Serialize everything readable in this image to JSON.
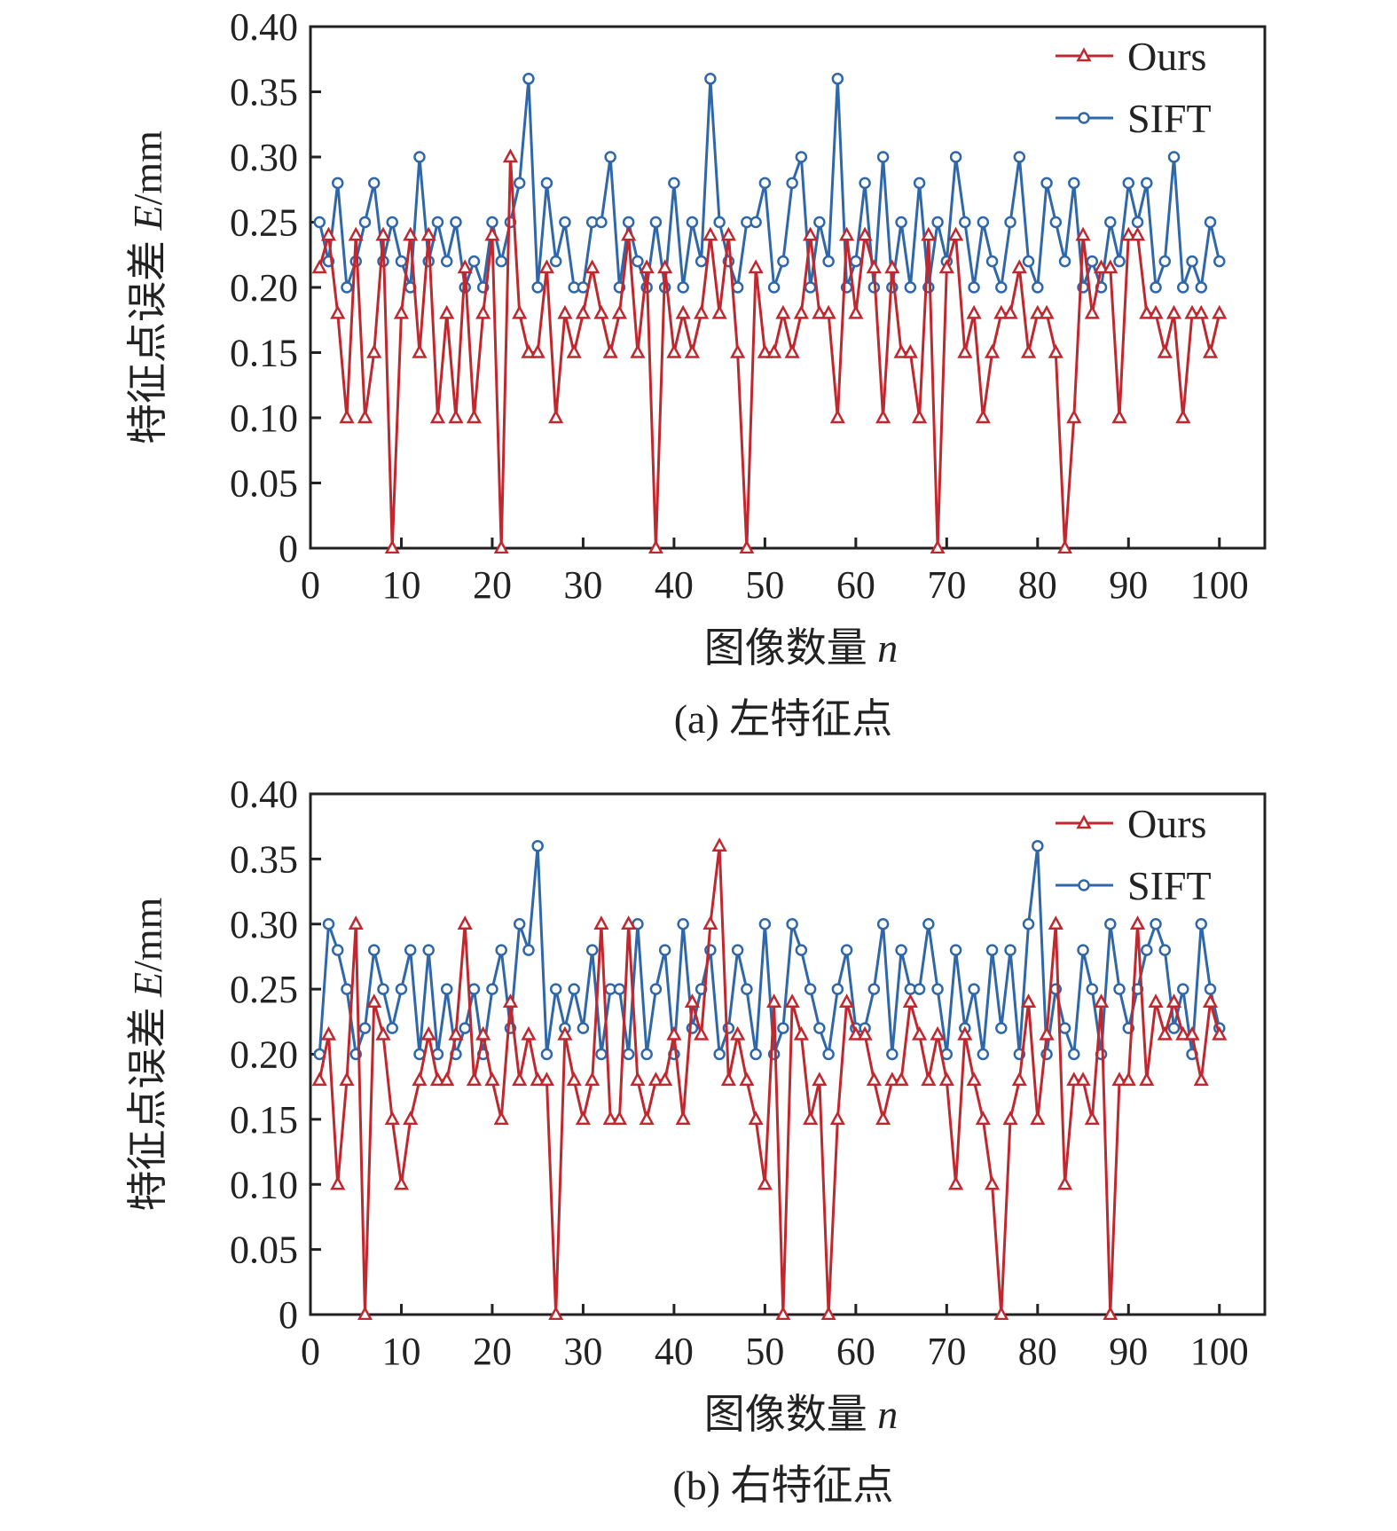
{
  "colors": {
    "ours": "#c0282f",
    "sift": "#2f67a8",
    "axis": "#222222"
  },
  "chart_data": [
    {
      "type": "line",
      "caption": "(a) 左特征点",
      "xlabel": "图像数量",
      "xlabel_var": "n",
      "ylabel": "特征点误差",
      "ylabel_var": "E",
      "ylabel_unit": "/mm",
      "xlim": [
        0,
        105
      ],
      "ylim": [
        0,
        0.4
      ],
      "xticks": [
        "0",
        "10",
        "20",
        "30",
        "40",
        "50",
        "60",
        "70",
        "80",
        "90",
        "100"
      ],
      "yticks": [
        "0",
        "0.05",
        "0.10",
        "0.15",
        "0.20",
        "0.25",
        "0.30",
        "0.35",
        "0.40"
      ],
      "legend_position": "top-right",
      "series": [
        {
          "name": "Ours",
          "marker": "triangle",
          "values": [
            0.215,
            0.24,
            0.18,
            0.1,
            0.24,
            0.1,
            0.15,
            0.24,
            0,
            0.18,
            0.24,
            0.15,
            0.24,
            0.1,
            0.18,
            0.1,
            0.215,
            0.1,
            0.18,
            0.24,
            0,
            0.3,
            0.18,
            0.15,
            0.15,
            0.215,
            0.1,
            0.18,
            0.15,
            0.18,
            0.215,
            0.18,
            0.15,
            0.18,
            0.24,
            0.15,
            0.215,
            0,
            0.215,
            0.15,
            0.18,
            0.15,
            0.18,
            0.24,
            0.18,
            0.24,
            0.15,
            0,
            0.215,
            0.15,
            0.15,
            0.18,
            0.15,
            0.18,
            0.24,
            0.18,
            0.18,
            0.1,
            0.24,
            0.18,
            0.24,
            0.215,
            0.1,
            0.215,
            0.15,
            0.15,
            0.1,
            0.24,
            0,
            0.215,
            0.24,
            0.15,
            0.18,
            0.1,
            0.15,
            0.18,
            0.18,
            0.215,
            0.15,
            0.18,
            0.18,
            0.15,
            0,
            0.1,
            0.24,
            0.18,
            0.215,
            0.215,
            0.1,
            0.24,
            0.24,
            0.18,
            0.18,
            0.15,
            0.18,
            0.1,
            0.18,
            0.18,
            0.15,
            0.18
          ]
        },
        {
          "name": "SIFT",
          "marker": "circle",
          "values": [
            0.25,
            0.22,
            0.28,
            0.2,
            0.22,
            0.25,
            0.28,
            0.22,
            0.25,
            0.22,
            0.2,
            0.3,
            0.22,
            0.25,
            0.22,
            0.25,
            0.2,
            0.22,
            0.2,
            0.25,
            0.22,
            0.25,
            0.28,
            0.36,
            0.2,
            0.28,
            0.22,
            0.25,
            0.2,
            0.2,
            0.25,
            0.25,
            0.3,
            0.2,
            0.25,
            0.22,
            0.2,
            0.25,
            0.2,
            0.28,
            0.2,
            0.25,
            0.22,
            0.36,
            0.25,
            0.22,
            0.2,
            0.25,
            0.25,
            0.28,
            0.2,
            0.22,
            0.28,
            0.3,
            0.2,
            0.25,
            0.22,
            0.36,
            0.2,
            0.22,
            0.28,
            0.2,
            0.3,
            0.2,
            0.25,
            0.2,
            0.28,
            0.2,
            0.25,
            0.22,
            0.3,
            0.25,
            0.2,
            0.25,
            0.22,
            0.2,
            0.25,
            0.3,
            0.22,
            0.2,
            0.28,
            0.25,
            0.22,
            0.28,
            0.2,
            0.22,
            0.2,
            0.25,
            0.22,
            0.28,
            0.25,
            0.28,
            0.2,
            0.22,
            0.3,
            0.2,
            0.22,
            0.2,
            0.25,
            0.22
          ]
        }
      ]
    },
    {
      "type": "line",
      "caption": "(b) 右特征点",
      "xlabel": "图像数量",
      "xlabel_var": "n",
      "ylabel": "特征点误差",
      "ylabel_var": "E",
      "ylabel_unit": "/mm",
      "xlim": [
        0,
        105
      ],
      "ylim": [
        0,
        0.4
      ],
      "xticks": [
        "0",
        "10",
        "20",
        "30",
        "40",
        "50",
        "60",
        "70",
        "80",
        "90",
        "100"
      ],
      "yticks": [
        "0",
        "0.05",
        "0.10",
        "0.15",
        "0.20",
        "0.25",
        "0.30",
        "0.35",
        "0.40"
      ],
      "legend_position": "top-right",
      "series": [
        {
          "name": "Ours",
          "marker": "triangle",
          "values": [
            0.18,
            0.215,
            0.1,
            0.18,
            0.3,
            0,
            0.24,
            0.215,
            0.15,
            0.1,
            0.15,
            0.18,
            0.215,
            0.18,
            0.18,
            0.215,
            0.3,
            0.18,
            0.215,
            0.18,
            0.15,
            0.24,
            0.18,
            0.215,
            0.18,
            0.18,
            0,
            0.215,
            0.18,
            0.15,
            0.18,
            0.3,
            0.15,
            0.15,
            0.3,
            0.18,
            0.15,
            0.18,
            0.18,
            0.215,
            0.15,
            0.24,
            0.215,
            0.3,
            0.36,
            0.18,
            0.215,
            0.18,
            0.15,
            0.1,
            0.24,
            0,
            0.24,
            0.215,
            0.15,
            0.18,
            0,
            0.15,
            0.24,
            0.215,
            0.215,
            0.18,
            0.15,
            0.18,
            0.18,
            0.24,
            0.215,
            0.18,
            0.215,
            0.18,
            0.1,
            0.215,
            0.18,
            0.15,
            0.1,
            0,
            0.15,
            0.18,
            0.24,
            0.15,
            0.215,
            0.3,
            0.1,
            0.18,
            0.18,
            0.15,
            0.24,
            0,
            0.18,
            0.18,
            0.3,
            0.18,
            0.24,
            0.215,
            0.24,
            0.215,
            0.215,
            0.18,
            0.24,
            0.215
          ]
        },
        {
          "name": "SIFT",
          "marker": "circle",
          "values": [
            0.2,
            0.3,
            0.28,
            0.25,
            0.2,
            0.22,
            0.28,
            0.25,
            0.22,
            0.25,
            0.28,
            0.2,
            0.28,
            0.2,
            0.25,
            0.2,
            0.22,
            0.25,
            0.2,
            0.25,
            0.28,
            0.22,
            0.3,
            0.28,
            0.36,
            0.2,
            0.25,
            0.22,
            0.25,
            0.22,
            0.28,
            0.2,
            0.25,
            0.25,
            0.2,
            0.3,
            0.2,
            0.25,
            0.28,
            0.2,
            0.3,
            0.22,
            0.25,
            0.28,
            0.2,
            0.22,
            0.28,
            0.25,
            0.2,
            0.3,
            0.2,
            0.22,
            0.3,
            0.28,
            0.25,
            0.22,
            0.2,
            0.25,
            0.28,
            0.22,
            0.22,
            0.25,
            0.3,
            0.2,
            0.28,
            0.25,
            0.25,
            0.3,
            0.25,
            0.2,
            0.28,
            0.22,
            0.25,
            0.2,
            0.28,
            0.22,
            0.28,
            0.2,
            0.3,
            0.36,
            0.2,
            0.25,
            0.22,
            0.2,
            0.28,
            0.25,
            0.2,
            0.3,
            0.25,
            0.22,
            0.25,
            0.28,
            0.3,
            0.28,
            0.22,
            0.25,
            0.2,
            0.3,
            0.25,
            0.22
          ]
        }
      ]
    }
  ]
}
